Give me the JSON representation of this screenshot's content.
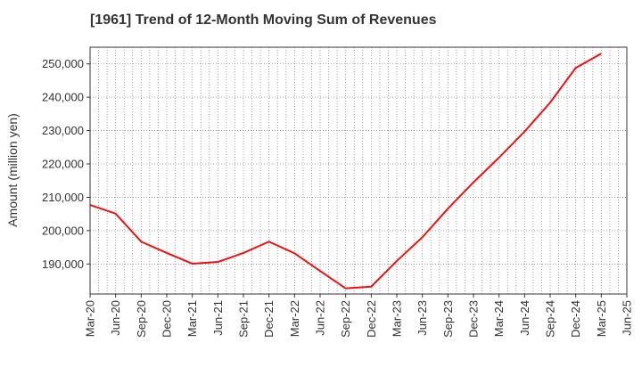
{
  "chart_data": {
    "type": "line",
    "title": "[1961]  Trend of 12-Month Moving Sum of Revenues",
    "xlabel": "",
    "ylabel": "Amount (million yen)",
    "ylim": [
      181000,
      255000
    ],
    "yticks": [
      190000,
      200000,
      210000,
      220000,
      230000,
      240000,
      250000
    ],
    "ytick_labels": [
      "190,000",
      "200,000",
      "210,000",
      "220,000",
      "230,000",
      "240,000",
      "250,000"
    ],
    "x_tick_labels": [
      "Mar-20",
      "Jun-20",
      "Sep-20",
      "Dec-20",
      "Mar-21",
      "Jun-21",
      "Sep-21",
      "Dec-21",
      "Mar-22",
      "Jun-22",
      "Sep-22",
      "Dec-22",
      "Mar-23",
      "Jun-23",
      "Sep-23",
      "Dec-23",
      "Mar-24",
      "Jun-24",
      "Sep-24",
      "Dec-24",
      "Mar-25",
      "Jun-25"
    ],
    "grid": true,
    "legend": "none",
    "series": [
      {
        "color": "#ee1111",
        "x": [
          "Mar-20",
          "Jun-20",
          "Sep-20",
          "Dec-20",
          "Mar-21",
          "Jun-21",
          "Sep-21",
          "Dec-21",
          "Mar-22",
          "Jun-22",
          "Sep-22",
          "Dec-22",
          "Mar-23",
          "Jun-23",
          "Sep-23",
          "Dec-23",
          "Mar-24",
          "Jun-24",
          "Sep-24",
          "Dec-24",
          "Mar-25"
        ],
        "values": [
          207700,
          205100,
          196700,
          193300,
          190100,
          190600,
          193300,
          196700,
          193200,
          187900,
          182700,
          183200,
          190900,
          198000,
          206600,
          214500,
          221900,
          229700,
          238400,
          248800,
          253100
        ]
      }
    ]
  }
}
